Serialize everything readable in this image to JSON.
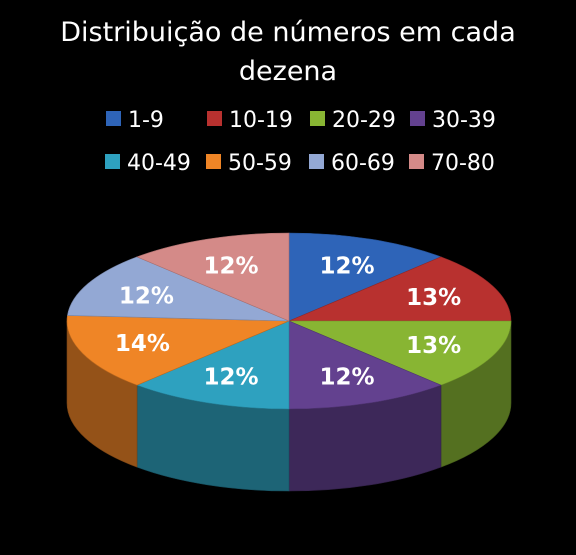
{
  "chart_data": {
    "type": "pie",
    "title": "Distribuição de números em cada dezena",
    "title_lines": [
      "Distribuição de números em cada",
      "dezena"
    ],
    "categories": [
      "1-9",
      "10-19",
      "20-29",
      "30-39",
      "40-49",
      "50-59",
      "60-69",
      "70-80"
    ],
    "values": [
      12,
      13,
      13,
      12,
      12,
      14,
      12,
      12
    ],
    "value_labels": [
      "12%",
      "13%",
      "13%",
      "12%",
      "12%",
      "14%",
      "12%",
      "12%"
    ],
    "colors": [
      "#2E64B8",
      "#B8312F",
      "#88B533",
      "#63418F",
      "#2EA1BF",
      "#EF8526",
      "#93A8D4",
      "#D48A88"
    ],
    "legend_position": "top",
    "style": "3d"
  }
}
